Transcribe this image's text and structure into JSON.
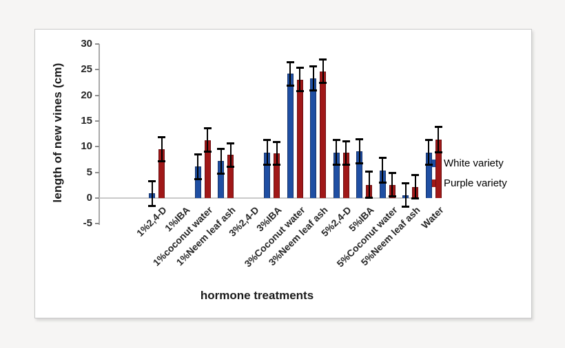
{
  "chart_data": {
    "type": "bar",
    "title": "",
    "xlabel": "hormone treatments",
    "ylabel": "length of new vines (cm)",
    "ylim": [
      -5,
      30
    ],
    "yticks": [
      30,
      25,
      20,
      15,
      10,
      5,
      0,
      -5
    ],
    "grid": false,
    "legend_position": "right-middle",
    "error_bars": true,
    "categories": [
      "1%2,4-D",
      "1%IBA",
      "1%coconut water",
      "1%Neem leaf ash",
      "3%2,4-D",
      "3%IBA",
      "3%Coconut water",
      "3%Neem leaf ash",
      "5%2,4-D",
      "5%IBA",
      "5%Coconut water",
      "5%Neem leaf ash",
      "Water"
    ],
    "series": [
      {
        "name": "White variety",
        "color": "#1F4FA3",
        "border_color": "#16336B",
        "values": [
          0.9,
          null,
          6.1,
          7.2,
          null,
          8.9,
          24.2,
          23.3,
          8.9,
          9.1,
          5.4,
          0.6,
          8.9
        ],
        "errors": [
          2.4,
          null,
          2.4,
          2.4,
          null,
          2.4,
          2.3,
          2.4,
          2.4,
          2.3,
          2.4,
          2.3,
          2.4
        ]
      },
      {
        "name": "Purple variety",
        "color": "#A01818",
        "border_color": "#6D0F12",
        "values": [
          9.5,
          null,
          11.3,
          8.4,
          null,
          8.7,
          23.1,
          24.7,
          8.8,
          2.6,
          2.6,
          2.2,
          11.4
        ],
        "errors": [
          2.3,
          null,
          2.3,
          2.3,
          null,
          2.2,
          2.3,
          2.3,
          2.3,
          2.5,
          2.3,
          2.3,
          2.5
        ]
      }
    ]
  },
  "style_colors": {
    "error_bar": "#000000",
    "axis_line": "#a9a9a9",
    "tick_mark": "#8c8c8c",
    "zero_line": "#c9c9c9",
    "frame_border": "#c9c9c9",
    "frame_bg": "#ffffff",
    "outer_bg": "#f6f5f4"
  }
}
